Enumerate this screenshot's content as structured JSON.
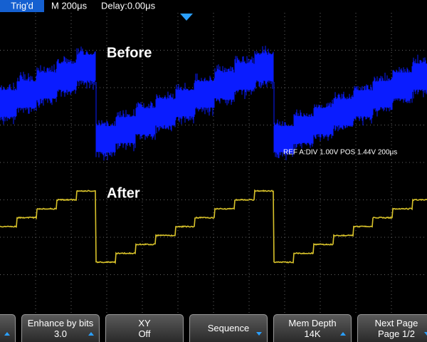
{
  "header": {
    "status": "Trig'd",
    "timebase": "M 200μs",
    "delay": "Delay:0.00μs"
  },
  "labels": {
    "before": "Before",
    "after": "After"
  },
  "ref_info": "REF A:DIV 1.00V  POS 1.44V 200μs",
  "menu": [
    {
      "label": "Enhance by bits",
      "value": "3.0"
    },
    {
      "label": "XY",
      "value": "Off"
    },
    {
      "label": "Sequence"
    },
    {
      "label": "Mem Depth",
      "value": "14K"
    },
    {
      "label": "Next Page",
      "value": "Page 1/2"
    }
  ]
}
